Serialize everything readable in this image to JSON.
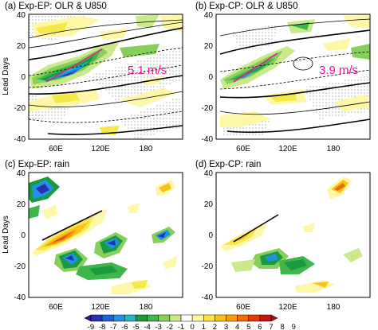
{
  "chart_data": [
    {
      "type": "heatmap",
      "panel": "a",
      "title": "(a) Exp-EP: OLR & U850",
      "ylabel": "Lead Days",
      "xticks": [
        "60E",
        "120E",
        "180"
      ],
      "yticks": [
        "40",
        "20",
        "0",
        "-20",
        "-40"
      ],
      "xlim": [
        30,
        240
      ],
      "ylim": [
        -40,
        40
      ],
      "annotation": "5.1 m/s",
      "fields": [
        "OLR (shaded)",
        "U850 (contours)"
      ]
    },
    {
      "type": "heatmap",
      "panel": "b",
      "title": "(b) Exp-CP: OLR & U850",
      "xticks": [
        "60E",
        "120E",
        "180"
      ],
      "yticks": [
        "40",
        "20",
        "0",
        "-20",
        "-40"
      ],
      "xlim": [
        30,
        240
      ],
      "ylim": [
        -40,
        40
      ],
      "annotation": "3.9 m/s",
      "fields": [
        "OLR (shaded)",
        "U850 (contours)"
      ]
    },
    {
      "type": "heatmap",
      "panel": "c",
      "title": "(c) Exp-EP: rain",
      "ylabel": "Lead Days",
      "xticks": [
        "60E",
        "120E",
        "180"
      ],
      "yticks": [
        "40",
        "20",
        "0",
        "-20",
        "-40"
      ],
      "xlim": [
        30,
        240
      ],
      "ylim": [
        -40,
        40
      ],
      "fields": [
        "rain (shaded)"
      ]
    },
    {
      "type": "heatmap",
      "panel": "d",
      "title": "(d) Exp-CP: rain",
      "xticks": [
        "60E",
        "120E",
        "180"
      ],
      "yticks": [
        "40",
        "20",
        "0",
        "-20",
        "-40"
      ],
      "xlim": [
        30,
        240
      ],
      "ylim": [
        -40,
        40
      ],
      "fields": [
        "rain (shaded)"
      ]
    }
  ],
  "colorbar": {
    "labels": [
      "-9",
      "-8",
      "-7",
      "-6",
      "-5",
      "-4",
      "-3",
      "-2",
      "-1",
      "0",
      "1",
      "2",
      "3",
      "4",
      "5",
      "6",
      "7",
      "8",
      "9"
    ],
    "colors": [
      "#4b0a86",
      "#2a2fb0",
      "#1e5fd6",
      "#1f93e0",
      "#23b5c4",
      "#1a9a3e",
      "#3fb64a",
      "#86cf5a",
      "#c9e98a",
      "#ffffff",
      "#fff7a8",
      "#f6e84a",
      "#f8c21a",
      "#f59a12",
      "#f06a10",
      "#e03a0c",
      "#c41610",
      "#a00f12"
    ]
  }
}
